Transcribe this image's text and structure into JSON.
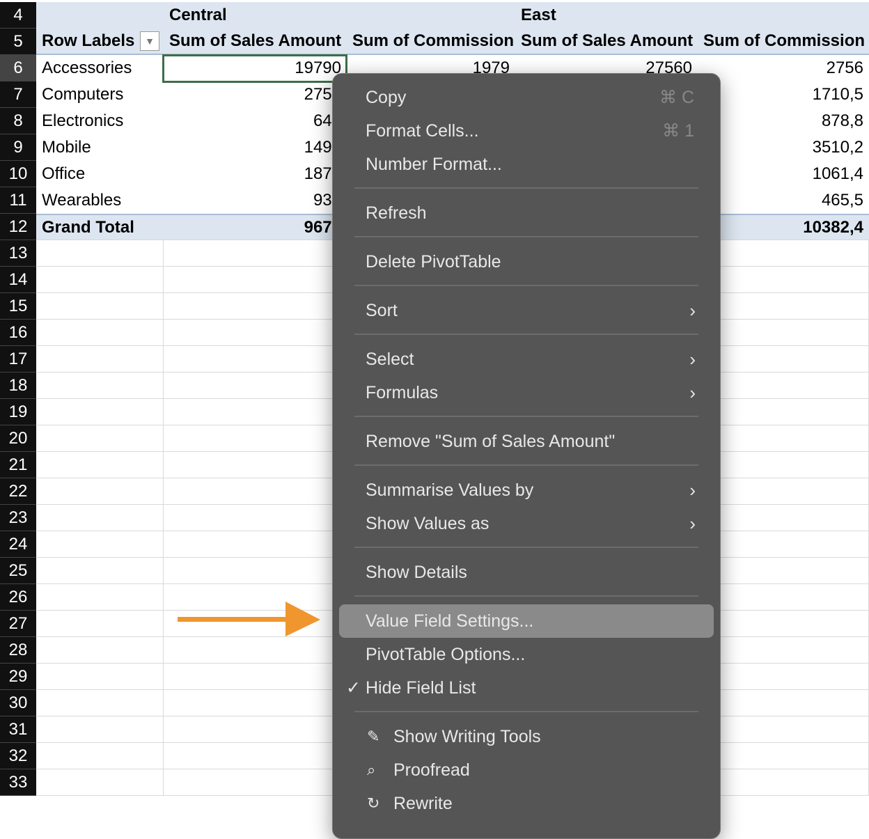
{
  "rows": [
    "4",
    "5",
    "6",
    "7",
    "8",
    "9",
    "10",
    "11",
    "12",
    "13",
    "14",
    "15",
    "16",
    "17",
    "18",
    "19",
    "20",
    "21",
    "22",
    "23",
    "24",
    "25",
    "26",
    "27",
    "28",
    "29",
    "30",
    "31",
    "32",
    "33"
  ],
  "pivot": {
    "regions": [
      "Central",
      "East"
    ],
    "row_labels_header": "Row Labels",
    "col_headers": [
      "Sum of Sales Amount",
      "Sum of Commission",
      "Sum of Sales Amount",
      "Sum of Commission"
    ],
    "data": [
      {
        "label": "Accessories",
        "values": [
          "19790",
          "1979",
          "27560",
          "2756"
        ]
      },
      {
        "label": "Computers",
        "values": [
          "2751",
          "",
          "",
          "1710,5"
        ]
      },
      {
        "label": "Electronics",
        "values": [
          "640",
          "",
          "",
          "878,8"
        ]
      },
      {
        "label": "Mobile",
        "values": [
          "1494",
          "",
          "",
          "3510,2"
        ]
      },
      {
        "label": "Office",
        "values": [
          "1878",
          "",
          "",
          "1061,4"
        ]
      },
      {
        "label": "Wearables",
        "values": [
          "931",
          "",
          "",
          "465,5"
        ]
      }
    ],
    "grand_total": {
      "label": "Grand Total",
      "values": [
        "9675",
        "",
        "",
        "10382,4"
      ]
    }
  },
  "menu": {
    "copy": "Copy",
    "copy_sc": "⌘ C",
    "format_cells": "Format Cells...",
    "format_sc": "⌘ 1",
    "number_format": "Number Format...",
    "refresh": "Refresh",
    "delete": "Delete PivotTable",
    "sort": "Sort",
    "select": "Select",
    "formulas": "Formulas",
    "remove": "Remove \"Sum of Sales Amount\"",
    "summarise": "Summarise Values by",
    "show_values": "Show Values as",
    "show_details": "Show Details",
    "value_field": "Value Field Settings...",
    "pivot_options": "PivotTable Options...",
    "hide_field": "Hide Field List",
    "writing_tools": "Show Writing Tools",
    "proofread": "Proofread",
    "rewrite": "Rewrite"
  },
  "colors": {
    "accent_arrow": "#f0962e",
    "selection": "#3d6e4a",
    "menu_bg": "#555555",
    "highlight": "#8a8a8a"
  }
}
